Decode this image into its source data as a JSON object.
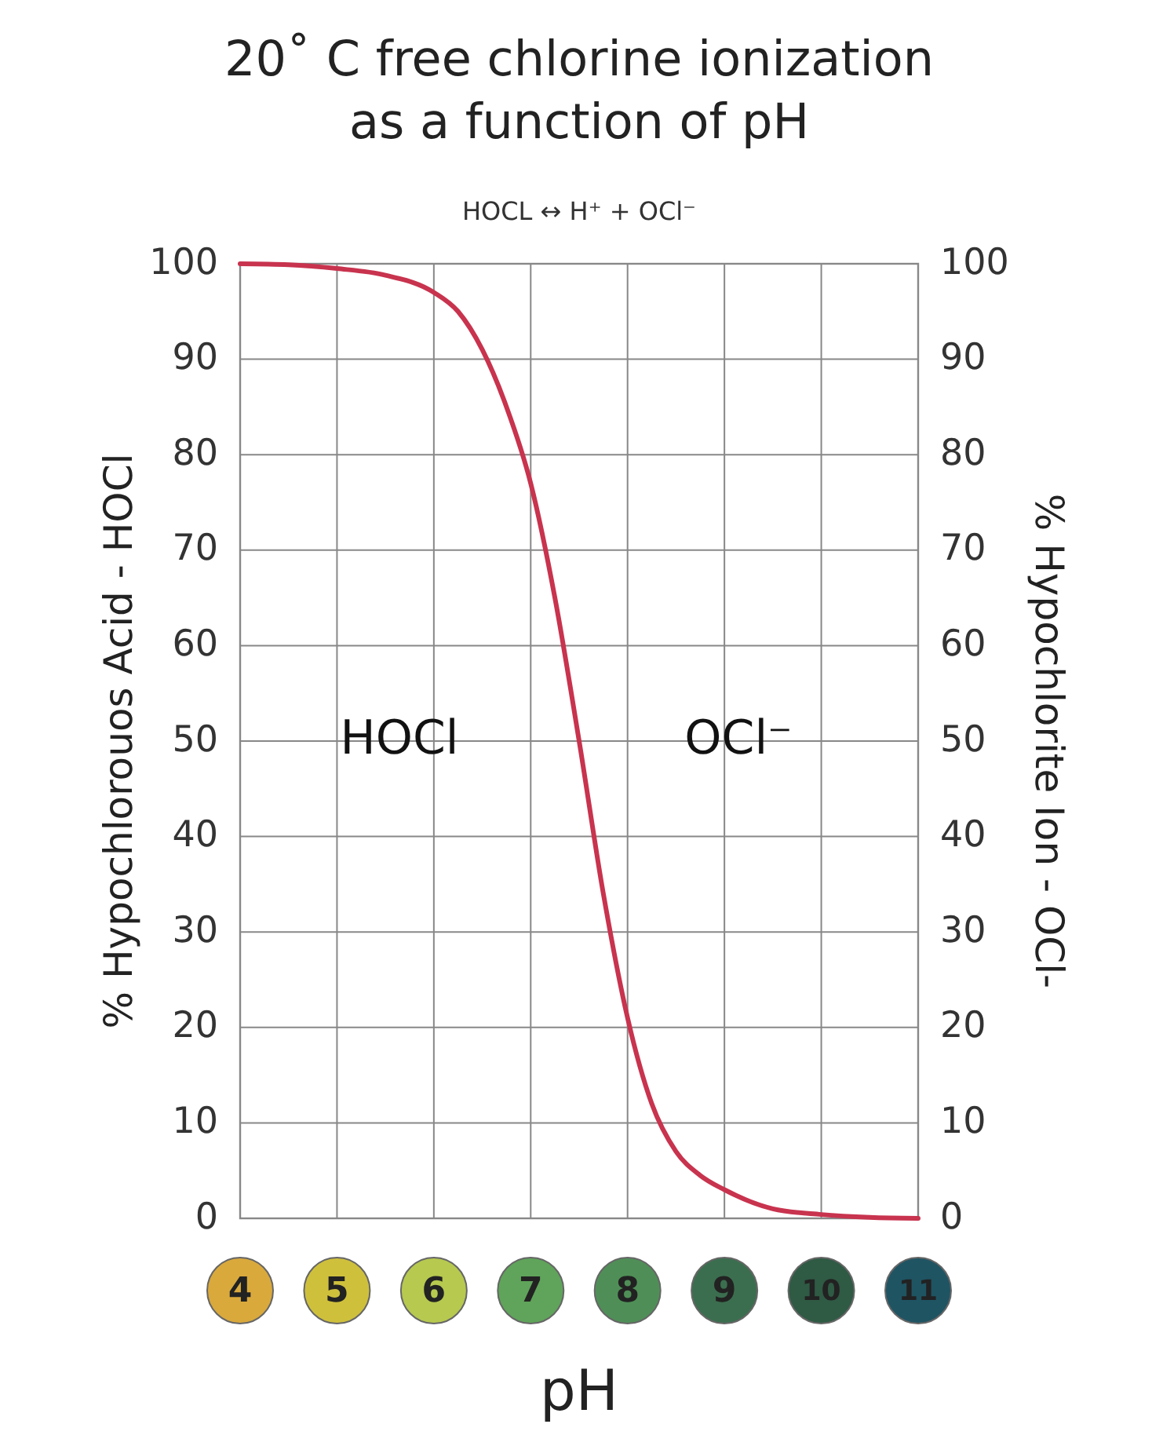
{
  "chart_data": {
    "type": "line",
    "title": "20˚ C free chlorine ionization as a function of pH",
    "subtitle": "HOCL ↔ H⁺ + OCl⁻",
    "xlabel": "pH",
    "ylabel": "% Hypochlorouos Acid - HOCl",
    "y2label": "% Hypochlorite Ion - OCl-",
    "x": [
      4,
      4.5,
      5,
      5.5,
      6,
      6.25,
      6.5,
      6.75,
      7,
      7.25,
      7.5,
      7.75,
      8,
      8.25,
      8.5,
      8.75,
      9,
      9.5,
      10,
      10.5,
      11
    ],
    "series": [
      {
        "color": "#c8334e",
        "values": [
          100,
          99.9,
          99.5,
          98.8,
          97,
          95,
          91,
          85,
          77,
          65,
          50,
          34,
          21,
          12,
          7,
          4.5,
          3,
          1,
          0.4,
          0.1,
          0
        ]
      }
    ],
    "xlim": [
      4,
      11
    ],
    "xticks": [
      4,
      5,
      6,
      7,
      8,
      9,
      10,
      11
    ],
    "ylim": [
      0,
      100
    ],
    "yticks": [
      0,
      10,
      20,
      30,
      40,
      50,
      60,
      70,
      80,
      90,
      100
    ],
    "y2lim": [
      0,
      100
    ],
    "y2ticks": [
      0,
      10,
      20,
      30,
      40,
      50,
      60,
      70,
      80,
      90,
      100
    ],
    "annotations": [
      "HOCl",
      "OCl⁻"
    ],
    "grid": true,
    "marker": "none",
    "line_style": "solid"
  }
}
